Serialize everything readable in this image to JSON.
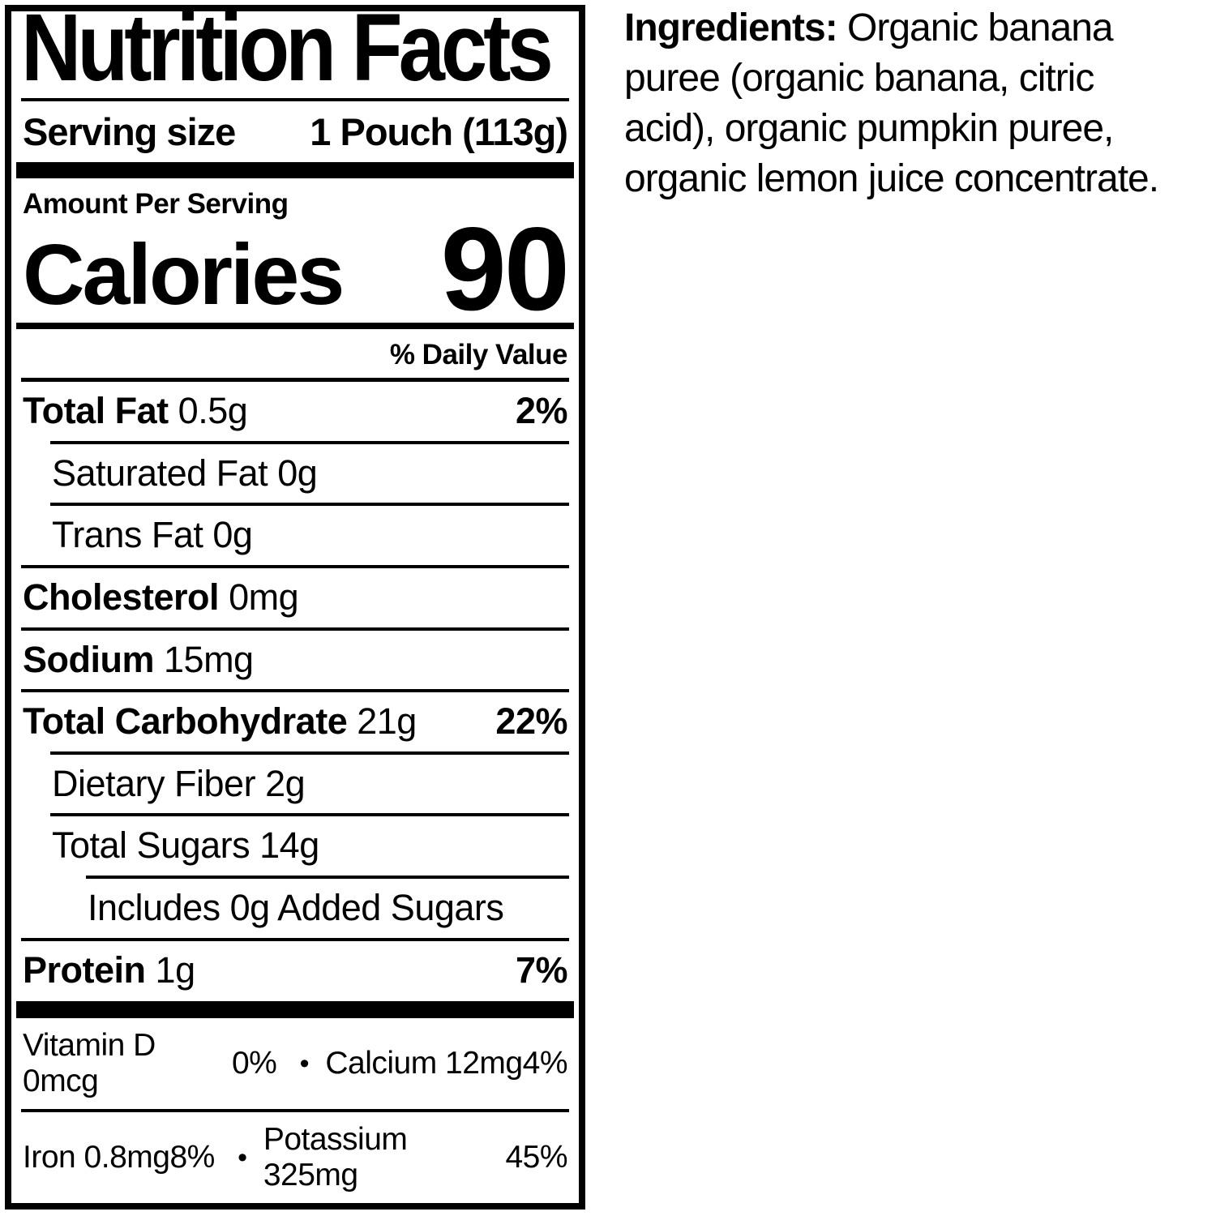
{
  "colors": {
    "ink": "#000000",
    "paper": "#ffffff"
  },
  "label": {
    "title": "Nutrition Facts",
    "serving_size_label": "Serving size",
    "serving_size_value": "1 Pouch (113g)",
    "amount_per_serving": "Amount Per Serving",
    "calories_label": "Calories",
    "calories_value": "90",
    "daily_value_header": "% Daily Value",
    "rows": [
      {
        "name": "Total Fat",
        "amount": "0.5g",
        "dv": "2%"
      },
      {
        "name": "Saturated Fat",
        "amount": "0g",
        "dv": ""
      },
      {
        "name": "Trans Fat",
        "amount": "0g",
        "dv": ""
      },
      {
        "name": "Cholesterol",
        "amount": "0mg",
        "dv": ""
      },
      {
        "name": "Sodium",
        "amount": "15mg",
        "dv": ""
      },
      {
        "name": "Total Carbohydrate",
        "amount": "21g",
        "dv": "22%"
      },
      {
        "name": "Dietary Fiber",
        "amount": "2g",
        "dv": ""
      },
      {
        "name": "Total Sugars",
        "amount": "14g",
        "dv": ""
      },
      {
        "name": "Includes 0g Added Sugars",
        "amount": "",
        "dv": ""
      },
      {
        "name": "Protein",
        "amount": "1g",
        "dv": "7%"
      }
    ],
    "micronutrients": [
      {
        "left_name": "Vitamin D 0mcg",
        "left_dv": "0%",
        "separator": "•",
        "right_name": "Calcium 12mg",
        "right_dv": "4%"
      },
      {
        "left_name": "Iron 0.8mg",
        "left_dv": "8%",
        "separator": "•",
        "right_name": "Potassium 325mg",
        "right_dv": "45%"
      }
    ]
  },
  "ingredients": {
    "heading": "Ingredients:",
    "line_1": "Organic banana",
    "line_2": "puree (organic banana, citric",
    "line_3": "acid), organic pumpkin puree,",
    "line_4": "organic lemon juice concentrate."
  }
}
